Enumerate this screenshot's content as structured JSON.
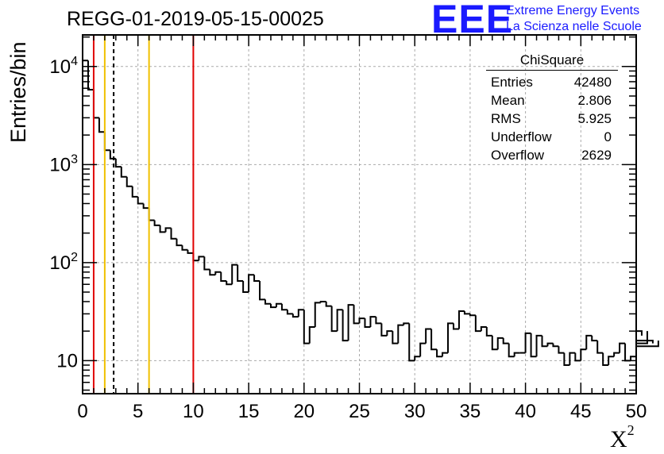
{
  "header": {
    "run_title": "REGG-01-2019-05-15-00025",
    "logo_letters": "EEE",
    "logo_line1": "Extreme Energy Events",
    "logo_line2": "La Scienza nelle Scuole"
  },
  "stats_box": {
    "title": "ChiSquare",
    "rows": [
      {
        "label": "Entries",
        "value": "42480"
      },
      {
        "label": "Mean",
        "value": "2.806"
      },
      {
        "label": "RMS",
        "value": "5.925"
      },
      {
        "label": "Underflow",
        "value": "0"
      },
      {
        "label": "Overflow",
        "value": "2629"
      }
    ]
  },
  "chart_data": {
    "type": "histogram",
    "title": "REGG-01-2019-05-15-00025",
    "xlabel": "X²",
    "ylabel": "Entries/bin",
    "xlim": [
      0,
      50
    ],
    "ylim": [
      4.6,
      21000
    ],
    "yscale": "log",
    "grid": true,
    "bin_width": 0.5,
    "x_ticks": [
      0,
      5,
      10,
      15,
      20,
      25,
      30,
      35,
      40,
      45,
      50
    ],
    "x_tick_labels": [
      "0",
      "5",
      "10",
      "15",
      "20",
      "25",
      "30",
      "35",
      "40",
      "45",
      "50"
    ],
    "y_ticks": [
      10,
      100,
      1000,
      10000
    ],
    "y_tick_labels": [
      {
        "base": "10",
        "exp": ""
      },
      {
        "base": "10",
        "exp": "2"
      },
      {
        "base": "10",
        "exp": "3"
      },
      {
        "base": "10",
        "exp": "4"
      }
    ],
    "values": [
      11500,
      5800,
      3000,
      2150,
      1400,
      1150,
      950,
      750,
      600,
      470,
      400,
      360,
      270,
      240,
      205,
      225,
      175,
      150,
      135,
      125,
      105,
      115,
      85,
      75,
      80,
      65,
      60,
      95,
      65,
      50,
      75,
      65,
      42,
      38,
      35,
      38,
      33,
      30,
      28,
      33,
      15,
      22,
      39,
      40,
      36,
      20,
      33,
      16,
      37,
      24,
      27,
      22,
      28,
      24,
      18,
      20,
      15,
      23,
      24,
      10,
      11,
      15,
      21,
      13,
      11,
      12,
      24,
      21,
      32,
      30,
      29,
      20,
      22,
      18,
      13,
      17,
      15,
      11,
      12,
      12,
      19,
      11,
      18,
      14,
      15,
      14,
      12,
      9,
      12,
      10,
      13,
      18,
      16,
      12,
      9,
      11,
      12,
      15,
      10,
      11,
      18,
      20,
      15,
      16,
      14
    ],
    "vertical_lines": [
      {
        "x": 1,
        "color": "#e00000",
        "style": "solid"
      },
      {
        "x": 2,
        "color": "#f0c000",
        "style": "solid"
      },
      {
        "x": 2.806,
        "color": "#000000",
        "style": "dashed"
      },
      {
        "x": 6,
        "color": "#f0c000",
        "style": "solid"
      },
      {
        "x": 10,
        "color": "#e00000",
        "style": "solid"
      }
    ]
  }
}
